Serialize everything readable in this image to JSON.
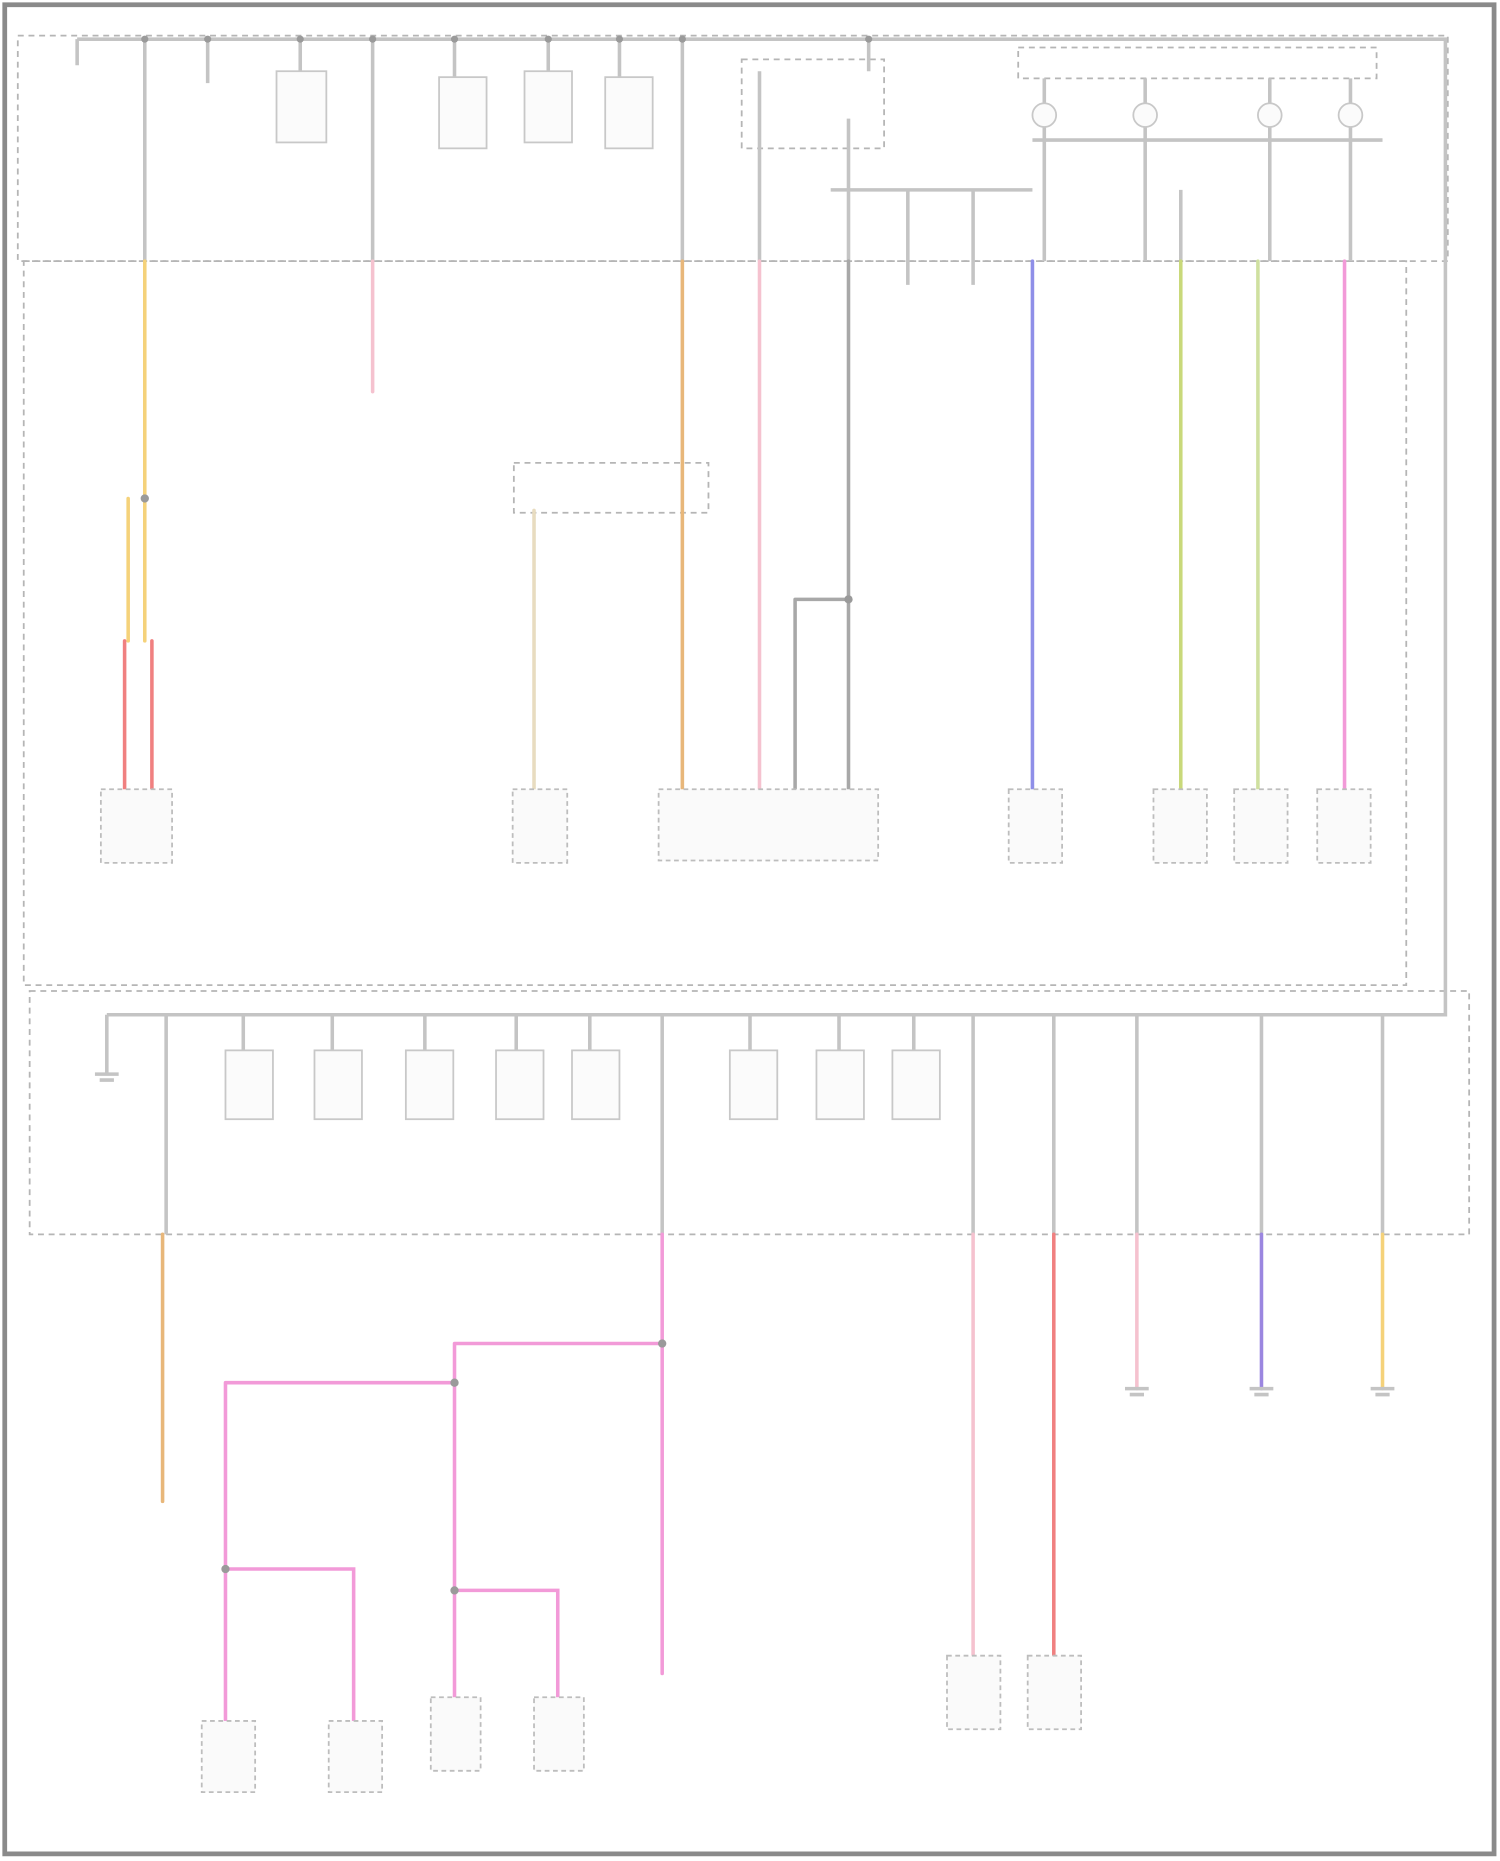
{
  "diagram": {
    "type": "wiring-schematic",
    "colors": {
      "frame": "#8a8a8a",
      "bus": "#c4c4c4",
      "gray_wire": "#a8a8a8",
      "yellow_wire": "#f5d27a",
      "orange_wire": "#e8b77a",
      "red_wire": "#f08080",
      "pink_wire": "#f29ad8",
      "light_pink_wire": "#f5c2cf",
      "beige_wire": "#e8dcc0",
      "blue_wire": "#8f8fe8",
      "green_yellow_wire": "#c9d97a",
      "green_wire": "#cfe0a0",
      "purple_wire": "#9b86e0"
    }
  }
}
